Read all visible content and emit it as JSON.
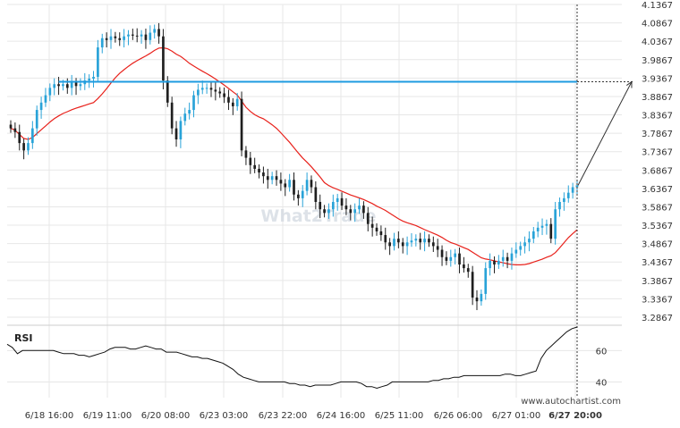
{
  "watermark": "What2Trade",
  "footer_brand": "www.autochartist.com",
  "colors": {
    "bull": "#29a3d8",
    "bear": "#1f1f1f",
    "ma": "#e8211b",
    "level": "#1e9be0",
    "grid": "#e7e7e7",
    "axis_text": "#333333",
    "rsi_line": "#111111"
  },
  "chart_data": [
    {
      "type": "candlestick",
      "title": "",
      "y_ticks": [
        "4.1367",
        "4.0867",
        "4.0367",
        "3.9867",
        "3.9367",
        "3.8867",
        "3.8367",
        "3.7867",
        "3.7367",
        "3.6867",
        "3.6367",
        "3.5867",
        "3.5367",
        "3.4867",
        "3.4367",
        "3.3867",
        "3.3367",
        "3.2867"
      ],
      "ylim": [
        3.2867,
        4.1367
      ],
      "x_ticks": [
        "6/18 16:00",
        "6/19 11:00",
        "6/20 08:00",
        "6/23 03:00",
        "6/23 22:00",
        "6/24 16:00",
        "6/25 11:00",
        "6/26 06:00",
        "6/27 01:00",
        "6/27 20:00"
      ],
      "last_price": 3.645,
      "resistance_level": 3.9267,
      "projection_target": 3.9267,
      "grid": true,
      "close": [
        3.8,
        3.79,
        3.76,
        3.74,
        3.76,
        3.8,
        3.85,
        3.87,
        3.89,
        3.91,
        3.92,
        3.915,
        3.92,
        3.91,
        3.925,
        3.915,
        3.92,
        3.93,
        3.935,
        3.94,
        4.02,
        4.045,
        4.04,
        4.05,
        4.045,
        4.04,
        4.05,
        4.055,
        4.052,
        4.05,
        4.055,
        4.04,
        4.06,
        4.07,
        4.05,
        3.93,
        3.87,
        3.8,
        3.77,
        3.82,
        3.84,
        3.85,
        3.89,
        3.905,
        3.91,
        3.91,
        3.905,
        3.9,
        3.895,
        3.885,
        3.87,
        3.86,
        3.88,
        3.74,
        3.72,
        3.7,
        3.69,
        3.68,
        3.67,
        3.66,
        3.67,
        3.66,
        3.65,
        3.64,
        3.66,
        3.62,
        3.61,
        3.63,
        3.66,
        3.64,
        3.6,
        3.58,
        3.57,
        3.58,
        3.6,
        3.61,
        3.59,
        3.58,
        3.57,
        3.58,
        3.59,
        3.57,
        3.54,
        3.53,
        3.52,
        3.51,
        3.49,
        3.48,
        3.5,
        3.49,
        3.48,
        3.49,
        3.495,
        3.5,
        3.49,
        3.5,
        3.49,
        3.48,
        3.47,
        3.45,
        3.44,
        3.45,
        3.46,
        3.43,
        3.42,
        3.41,
        3.34,
        3.33,
        3.35,
        3.42,
        3.44,
        3.43,
        3.44,
        3.45,
        3.44,
        3.46,
        3.47,
        3.48,
        3.49,
        3.5,
        3.52,
        3.53,
        3.535,
        3.54,
        3.5,
        3.58,
        3.6,
        3.61,
        3.625,
        3.64,
        3.645
      ]
    },
    {
      "type": "line",
      "title": "RSI",
      "y_ticks": [
        "60",
        "40"
      ],
      "values": [
        64,
        62,
        58,
        60,
        60,
        60,
        60,
        60,
        60,
        60,
        59,
        58,
        58,
        58,
        57,
        57,
        56,
        57,
        58,
        59,
        61,
        62,
        62,
        62,
        61,
        61,
        62,
        63,
        62,
        61,
        61,
        59,
        59,
        59,
        58,
        57,
        56,
        56,
        55,
        55,
        54,
        53,
        52,
        50,
        48,
        45,
        43,
        42,
        41,
        40,
        40,
        40,
        40,
        40,
        40,
        39,
        39,
        38,
        38,
        37,
        38,
        38,
        38,
        38,
        39,
        40,
        40,
        40,
        40,
        39,
        37,
        37,
        36,
        37,
        38,
        40,
        40,
        40,
        40,
        40,
        40,
        40,
        40,
        41,
        41,
        42,
        42,
        43,
        43,
        44,
        44,
        44,
        44,
        44,
        44,
        44,
        44,
        45,
        45,
        44,
        44,
        45,
        46,
        47,
        55,
        60,
        63,
        66,
        69,
        72,
        74,
        75
      ]
    }
  ]
}
